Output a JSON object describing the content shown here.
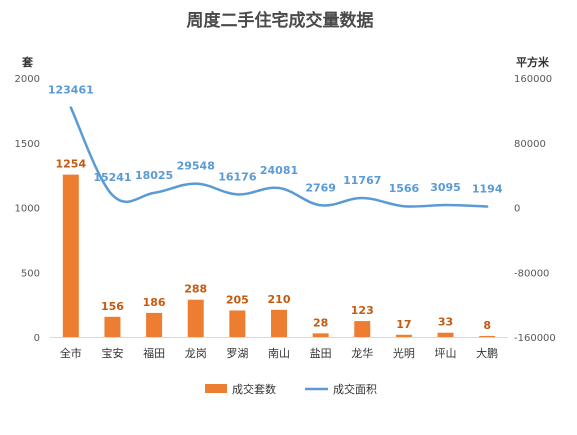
{
  "chart_data": {
    "type": "bar",
    "title": "周度二手住宅成交量数据",
    "categories": [
      "全市",
      "宝安",
      "福田",
      "龙岗",
      "罗湖",
      "南山",
      "盐田",
      "龙华",
      "光明",
      "坪山",
      "大鹏"
    ],
    "series": [
      {
        "name": "成交套数",
        "type": "bar",
        "axis": "left",
        "color": "#ed7d31",
        "values": [
          1254,
          156,
          186,
          288,
          205,
          210,
          28,
          123,
          17,
          33,
          8
        ]
      },
      {
        "name": "成交面积",
        "type": "line",
        "axis": "right",
        "color": "#5b9bd5",
        "values": [
          123461,
          15241,
          18025,
          29548,
          16176,
          24081,
          2769,
          11767,
          1566,
          3095,
          1194
        ]
      }
    ],
    "y_left": {
      "label": "套",
      "min": 0,
      "max": 2000,
      "ticks": [
        0,
        500,
        1000,
        1500,
        2000
      ]
    },
    "y_right": {
      "label": "平方米",
      "min": -160000,
      "max": 160000,
      "ticks": [
        -160000,
        -80000,
        0,
        80000,
        160000
      ]
    },
    "grid": false,
    "legend_position": "bottom"
  }
}
